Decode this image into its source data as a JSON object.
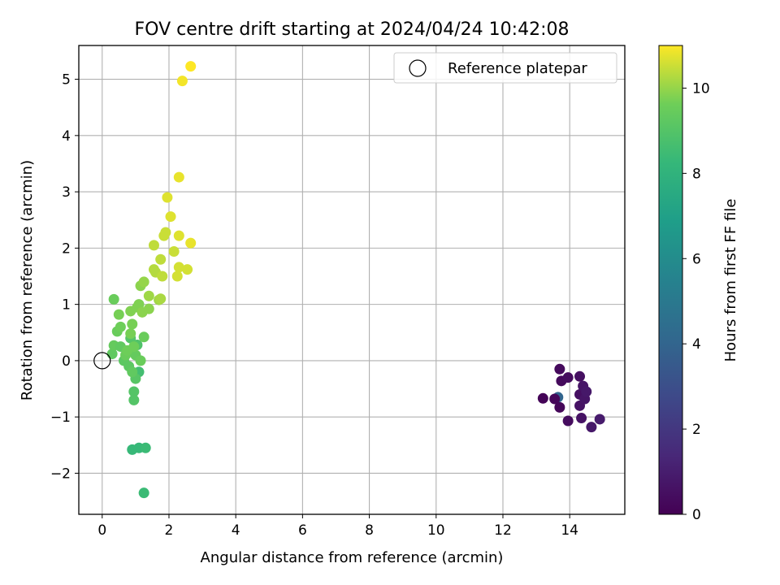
{
  "chart_data": {
    "type": "scatter",
    "title": "FOV centre drift starting at 2024/04/24 10:42:08",
    "xlabel": "Angular distance from reference (arcmin)",
    "ylabel": "Rotation from reference (arcmin)",
    "xlim": [
      -0.7,
      15.65
    ],
    "ylim": [
      -2.73,
      5.6
    ],
    "xticks": [
      0,
      2,
      4,
      6,
      8,
      10,
      12,
      14
    ],
    "yticks": [
      -2,
      -1,
      0,
      1,
      2,
      3,
      4,
      5
    ],
    "grid": true,
    "legend": {
      "position": "top-right",
      "entries": [
        "Reference platepar"
      ]
    },
    "reference_point": {
      "x": 0,
      "y": 0,
      "label": "Reference platepar"
    },
    "colorbar": {
      "label": "Hours from first FF file",
      "range": [
        0,
        11
      ],
      "ticks": [
        0,
        2,
        4,
        6,
        8,
        10
      ],
      "colormap": "viridis"
    },
    "points": [
      {
        "x": 13.65,
        "y": -0.65,
        "c": 4.0
      },
      {
        "x": 13.2,
        "y": -0.67,
        "c": 0.1
      },
      {
        "x": 13.55,
        "y": -0.68,
        "c": 0.2
      },
      {
        "x": 13.7,
        "y": -0.83,
        "c": 0.2
      },
      {
        "x": 13.7,
        "y": -0.15,
        "c": 0.3
      },
      {
        "x": 13.75,
        "y": -0.36,
        "c": 0.3
      },
      {
        "x": 13.95,
        "y": -0.3,
        "c": 0.4
      },
      {
        "x": 13.95,
        "y": -1.07,
        "c": 0.4
      },
      {
        "x": 14.3,
        "y": -0.28,
        "c": 0.5
      },
      {
        "x": 14.3,
        "y": -0.6,
        "c": 0.5
      },
      {
        "x": 14.3,
        "y": -0.8,
        "c": 0.6
      },
      {
        "x": 14.35,
        "y": -1.02,
        "c": 0.6
      },
      {
        "x": 14.4,
        "y": -0.45,
        "c": 0.7
      },
      {
        "x": 14.45,
        "y": -0.68,
        "c": 0.7
      },
      {
        "x": 14.5,
        "y": -0.55,
        "c": 0.8
      },
      {
        "x": 14.65,
        "y": -1.18,
        "c": 0.8
      },
      {
        "x": 14.9,
        "y": -1.04,
        "c": 0.9
      },
      {
        "x": 0.9,
        "y": -1.58,
        "c": 8.3
      },
      {
        "x": 1.1,
        "y": -1.55,
        "c": 8.3
      },
      {
        "x": 1.3,
        "y": -1.55,
        "c": 8.4
      },
      {
        "x": 1.25,
        "y": -2.35,
        "c": 8.4
      },
      {
        "x": 1.1,
        "y": -0.2,
        "c": 8.6
      },
      {
        "x": 0.95,
        "y": -0.55,
        "c": 9.0
      },
      {
        "x": 0.95,
        "y": -0.7,
        "c": 9.0
      },
      {
        "x": 1.0,
        "y": -0.32,
        "c": 9.1
      },
      {
        "x": 1.05,
        "y": 0.28,
        "c": 8.9
      },
      {
        "x": 0.85,
        "y": 0.4,
        "c": 9.0
      },
      {
        "x": 0.65,
        "y": 0.0,
        "c": 9.2
      },
      {
        "x": 0.3,
        "y": 0.12,
        "c": 9.3
      },
      {
        "x": 0.35,
        "y": 0.27,
        "c": 9.4
      },
      {
        "x": 0.55,
        "y": 0.25,
        "c": 9.3
      },
      {
        "x": 0.7,
        "y": 0.1,
        "c": 9.5
      },
      {
        "x": 0.8,
        "y": -0.1,
        "c": 9.2
      },
      {
        "x": 0.9,
        "y": -0.2,
        "c": 9.3
      },
      {
        "x": 1.0,
        "y": 0.1,
        "c": 9.4
      },
      {
        "x": 1.15,
        "y": 0.0,
        "c": 9.5
      },
      {
        "x": 0.75,
        "y": 0.18,
        "c": 9.6
      },
      {
        "x": 0.95,
        "y": 0.25,
        "c": 9.6
      },
      {
        "x": 1.25,
        "y": 0.42,
        "c": 9.5
      },
      {
        "x": 0.45,
        "y": 0.52,
        "c": 9.5
      },
      {
        "x": 0.55,
        "y": 0.6,
        "c": 9.6
      },
      {
        "x": 0.85,
        "y": 0.48,
        "c": 9.7
      },
      {
        "x": 0.9,
        "y": 0.65,
        "c": 9.7
      },
      {
        "x": 0.35,
        "y": 1.09,
        "c": 9.5
      },
      {
        "x": 0.5,
        "y": 0.82,
        "c": 9.7
      },
      {
        "x": 0.85,
        "y": 0.88,
        "c": 9.8
      },
      {
        "x": 1.05,
        "y": 0.95,
        "c": 9.8
      },
      {
        "x": 1.1,
        "y": 1.0,
        "c": 9.8
      },
      {
        "x": 1.2,
        "y": 0.86,
        "c": 9.9
      },
      {
        "x": 1.4,
        "y": 0.92,
        "c": 9.9
      },
      {
        "x": 1.15,
        "y": 1.33,
        "c": 9.9
      },
      {
        "x": 1.25,
        "y": 1.4,
        "c": 10.0
      },
      {
        "x": 1.4,
        "y": 1.15,
        "c": 10.1
      },
      {
        "x": 1.7,
        "y": 1.08,
        "c": 10.1
      },
      {
        "x": 1.75,
        "y": 1.1,
        "c": 10.2
      },
      {
        "x": 1.55,
        "y": 1.62,
        "c": 10.3
      },
      {
        "x": 1.6,
        "y": 1.57,
        "c": 10.3
      },
      {
        "x": 1.8,
        "y": 1.5,
        "c": 10.4
      },
      {
        "x": 1.75,
        "y": 1.8,
        "c": 10.4
      },
      {
        "x": 1.55,
        "y": 2.05,
        "c": 10.4
      },
      {
        "x": 1.85,
        "y": 2.22,
        "c": 10.5
      },
      {
        "x": 1.9,
        "y": 2.28,
        "c": 10.5
      },
      {
        "x": 2.15,
        "y": 1.94,
        "c": 10.5
      },
      {
        "x": 2.25,
        "y": 1.5,
        "c": 10.6
      },
      {
        "x": 2.3,
        "y": 1.66,
        "c": 10.6
      },
      {
        "x": 2.55,
        "y": 1.62,
        "c": 10.6
      },
      {
        "x": 2.3,
        "y": 2.22,
        "c": 10.7
      },
      {
        "x": 2.65,
        "y": 2.09,
        "c": 10.8
      },
      {
        "x": 2.05,
        "y": 2.56,
        "c": 10.7
      },
      {
        "x": 1.95,
        "y": 2.9,
        "c": 10.7
      },
      {
        "x": 2.3,
        "y": 3.26,
        "c": 10.8
      },
      {
        "x": 2.4,
        "y": 4.97,
        "c": 10.9
      },
      {
        "x": 2.65,
        "y": 5.23,
        "c": 11.0
      }
    ]
  }
}
